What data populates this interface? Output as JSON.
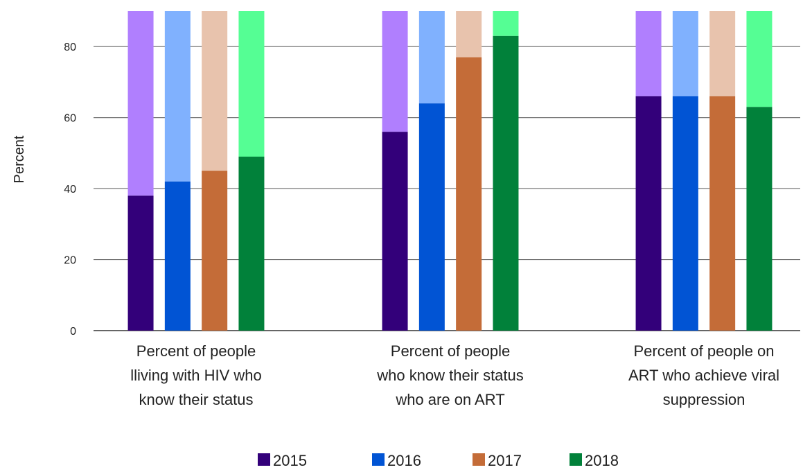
{
  "chart_data": {
    "type": "bar",
    "ylabel": "Percent",
    "xlabel": "",
    "ylim": [
      0,
      90
    ],
    "yticks": [
      0,
      20,
      40,
      60,
      80
    ],
    "grid": true,
    "legend_placement": "bottom-center",
    "stacked_on_target": true,
    "target_value": 90,
    "categories": [
      [
        "Percent of people",
        "lliving with HIV who",
        "know their status"
      ],
      [
        "Percent of people",
        "who know their status",
        "who are on ART"
      ],
      [
        "Percent of people on",
        "ART who achieve viral",
        "suppression"
      ]
    ],
    "series": [
      {
        "name": "2015",
        "values": [
          38,
          56,
          66
        ],
        "color": "#33007a",
        "target_color": "#b07ffe"
      },
      {
        "name": "2016",
        "values": [
          42,
          64,
          66
        ],
        "color": "#0154d4",
        "target_color": "#80b1fe"
      },
      {
        "name": "2017",
        "values": [
          45,
          77,
          66
        ],
        "color": "#c46c38",
        "target_color": "#e8c3ad"
      },
      {
        "name": "2018",
        "values": [
          49,
          83,
          63
        ],
        "color": "#01813a",
        "target_color": "#55fe94"
      }
    ]
  }
}
